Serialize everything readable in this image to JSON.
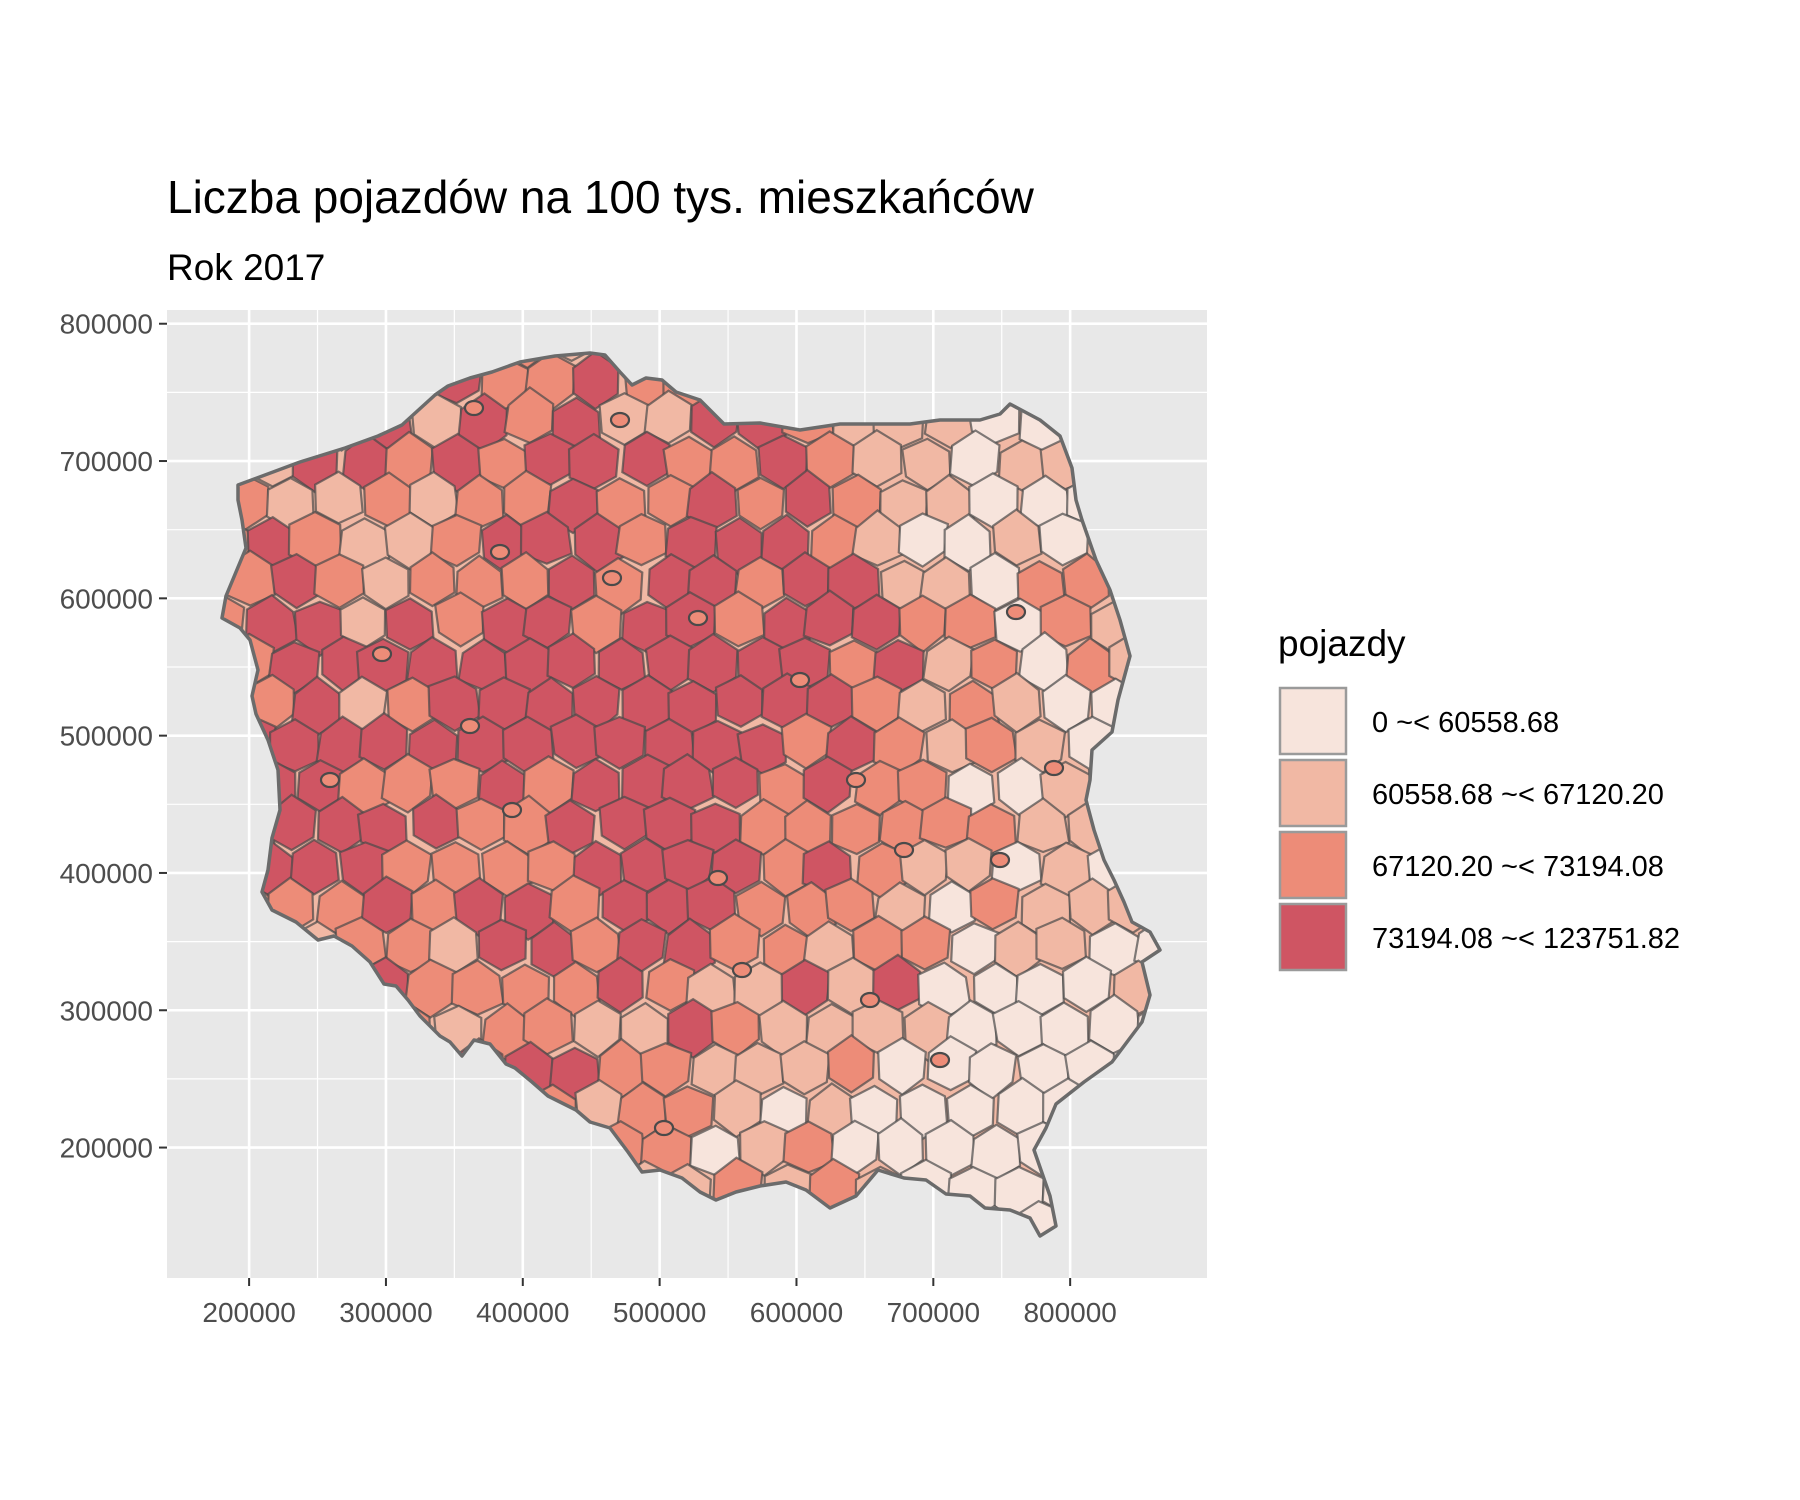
{
  "chart_data": {
    "type": "choropleth",
    "title": "Liczba pojazdów na 100 tys. mieszkańców",
    "subtitle": "Rok 2017",
    "x_ticks": [
      200000,
      300000,
      400000,
      500000,
      600000,
      700000,
      800000
    ],
    "y_ticks": [
      200000,
      300000,
      400000,
      500000,
      600000,
      700000,
      800000
    ],
    "xlim": [
      140000,
      900000
    ],
    "ylim": [
      105000,
      810000
    ],
    "grid": true,
    "panel_background": "#e8e8e8",
    "border_color": "#555555",
    "legend": {
      "title": "pojazdy",
      "placement": "right",
      "classes": [
        {
          "label": "0 ~< 60558.68",
          "color": "#f7e4dc"
        },
        {
          "label": "60558.68 ~< 67120.20",
          "color": "#f1b8a4"
        },
        {
          "label": "67120.20 ~< 73194.08",
          "color": "#ed8c78"
        },
        {
          "label": "73194.08 ~< 123751.82",
          "color": "#cf5563"
        }
      ]
    }
  }
}
